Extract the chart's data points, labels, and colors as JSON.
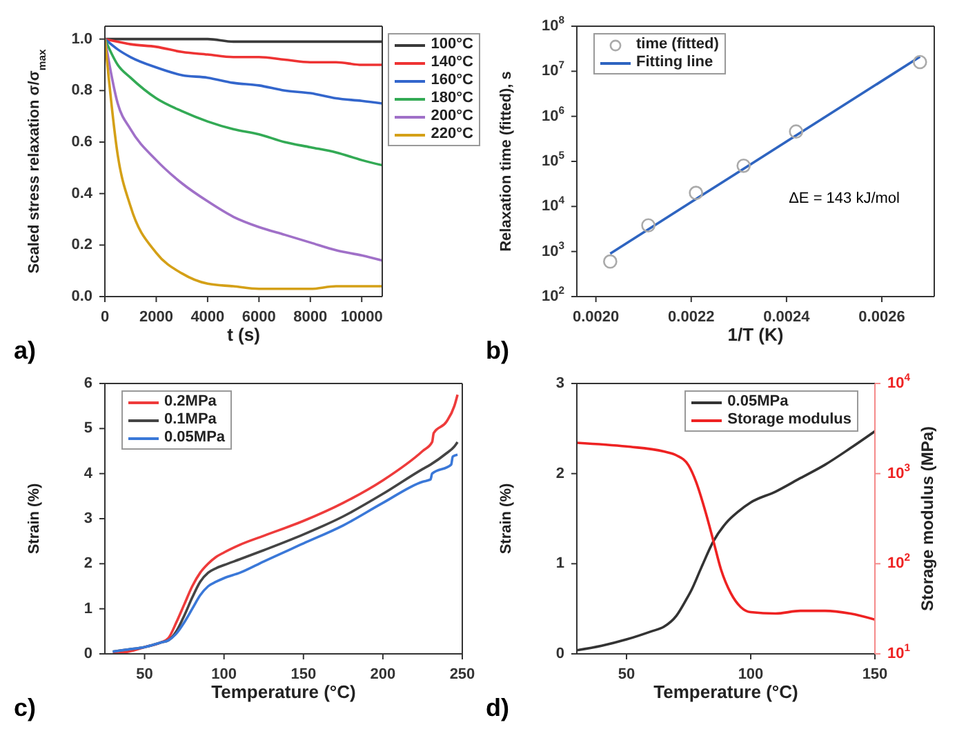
{
  "chart_data": [
    {
      "type": "line",
      "xlabel": "t (s)",
      "ylabel": "Scaled stress relaxation σ/σ$_{max}$",
      "annotations": [
        "a)"
      ],
      "legend": "top right",
      "xlim": [
        0,
        10800
      ],
      "xticks": [
        0,
        2000,
        4000,
        6000,
        8000,
        10000
      ],
      "ylim": [
        0,
        1.05
      ],
      "yticks": [
        {
          "value": 0,
          "label": "0.0"
        },
        0.2,
        0.4,
        0.6,
        0.8,
        {
          "value": 1,
          "label": "1.0"
        }
      ],
      "x": [
        0,
        500,
        1000,
        2000,
        3000,
        4000,
        5000,
        6000,
        7000,
        8000,
        9000,
        10000,
        10800
      ],
      "series": [
        {
          "name": "100°C",
          "color": "#3a3a3a",
          "values": [
            1,
            1,
            1,
            1,
            1,
            1,
            0.99,
            0.99,
            0.99,
            0.99,
            0.99,
            0.99,
            0.99
          ]
        },
        {
          "name": "140°C",
          "color": "#ee3333",
          "values": [
            1,
            0.99,
            0.98,
            0.97,
            0.95,
            0.94,
            0.93,
            0.93,
            0.92,
            0.91,
            0.91,
            0.9,
            0.9
          ]
        },
        {
          "name": "160°C",
          "color": "#3366cc",
          "values": [
            1,
            0.96,
            0.93,
            0.89,
            0.86,
            0.85,
            0.83,
            0.82,
            0.8,
            0.79,
            0.77,
            0.76,
            0.75
          ]
        },
        {
          "name": "180°C",
          "color": "#33aa55",
          "values": [
            1,
            0.9,
            0.85,
            0.77,
            0.72,
            0.68,
            0.65,
            0.63,
            0.6,
            0.58,
            0.56,
            0.53,
            0.51
          ]
        },
        {
          "name": "200°C",
          "color": "#a070c8",
          "values": [
            1,
            0.75,
            0.65,
            0.53,
            0.44,
            0.37,
            0.31,
            0.27,
            0.24,
            0.21,
            0.18,
            0.16,
            0.14
          ]
        },
        {
          "name": "220°C",
          "color": "#d4a017",
          "values": [
            1,
            0.55,
            0.35,
            0.17,
            0.09,
            0.05,
            0.04,
            0.03,
            0.03,
            0.03,
            0.04,
            0.04,
            0.04
          ]
        }
      ]
    },
    {
      "type": "line",
      "xlabel": "1/T (K)",
      "ylabel": "Relaxation time (fitted), s",
      "annotations": [
        "b)",
        "ΔE = 143 kJ/mol"
      ],
      "legend": "top left",
      "log": "y",
      "xlim": [
        0.00196,
        0.00271
      ],
      "xticks": [
        {
          "value": 0.002,
          "label": "0.0020"
        },
        {
          "value": 0.0022,
          "label": "0.0022"
        },
        {
          "value": 0.0024,
          "label": "0.0024"
        },
        {
          "value": 0.0026,
          "label": "0.0026"
        }
      ],
      "ylim": [
        100,
        100000000
      ],
      "yticks": [
        {
          "value": 100,
          "label": "10$^{2}$"
        },
        {
          "value": 1000,
          "label": "10$^{3}$"
        },
        {
          "value": 10000,
          "label": "10$^{4}$"
        },
        {
          "value": 100000,
          "label": "10$^{5}$"
        },
        {
          "value": 1000000,
          "label": "10$^{6}$"
        },
        {
          "value": 10000000,
          "label": "10$^{7}$"
        },
        {
          "value": 100000000,
          "label": "10$^{8}$"
        }
      ],
      "series": [
        {
          "name": "time (fitted)",
          "type": "scatter",
          "marker": "circle",
          "color": "#aaaaaa",
          "x": [
            0.00203,
            0.00211,
            0.00221,
            0.00231,
            0.00242,
            0.00268
          ],
          "values": [
            600,
            3800,
            20000,
            80000,
            460000,
            16000000
          ]
        },
        {
          "name": "Fitting line",
          "color": "#2e64c0",
          "x": [
            0.00203,
            0.00268
          ],
          "values": [
            900,
            21000000
          ]
        }
      ]
    },
    {
      "type": "line",
      "xlabel": "Temperature (°C)",
      "ylabel": "Strain (%)",
      "annotations": [
        "c)"
      ],
      "legend": "top left",
      "xlim": [
        25,
        250
      ],
      "xticks": [
        50,
        100,
        150,
        200,
        250
      ],
      "ylim": [
        0,
        6
      ],
      "yticks": [
        0,
        1,
        2,
        3,
        4,
        5,
        6
      ],
      "series": [
        {
          "name": "0.2MPa",
          "color": "#ee3b3b",
          "x": [
            30,
            40,
            50,
            60,
            65,
            70,
            75,
            80,
            85,
            90,
            95,
            100,
            110,
            125,
            150,
            175,
            200,
            225,
            231,
            232,
            240,
            245,
            247
          ],
          "values": [
            0,
            0.05,
            0.15,
            0.25,
            0.35,
            0.7,
            1.1,
            1.5,
            1.8,
            2,
            2.15,
            2.25,
            2.42,
            2.62,
            2.95,
            3.35,
            3.85,
            4.5,
            4.7,
            4.9,
            5.15,
            5.5,
            5.75
          ]
        },
        {
          "name": "0.1MPa",
          "color": "#444444",
          "x": [
            30,
            40,
            50,
            60,
            65,
            70,
            75,
            80,
            85,
            90,
            95,
            100,
            110,
            125,
            150,
            175,
            200,
            225,
            230,
            240,
            245,
            247
          ],
          "values": [
            0.05,
            0.1,
            0.15,
            0.25,
            0.3,
            0.5,
            0.85,
            1.25,
            1.6,
            1.8,
            1.9,
            1.97,
            2.1,
            2.3,
            2.65,
            3.05,
            3.55,
            4.1,
            4.2,
            4.45,
            4.6,
            4.7
          ]
        },
        {
          "name": "0.05MPa",
          "color": "#3a78d8",
          "x": [
            30,
            40,
            50,
            60,
            65,
            70,
            75,
            80,
            85,
            90,
            95,
            100,
            110,
            125,
            150,
            175,
            200,
            225,
            230,
            231,
            243,
            244,
            247
          ],
          "values": [
            0.05,
            0.1,
            0.15,
            0.25,
            0.3,
            0.45,
            0.7,
            1,
            1.3,
            1.5,
            1.6,
            1.68,
            1.8,
            2.05,
            2.45,
            2.85,
            3.35,
            3.82,
            3.87,
            4,
            4.2,
            4.38,
            4.42
          ]
        }
      ]
    },
    {
      "type": "line",
      "xlabel": "Temperature (°C)",
      "ylabel": "Strain (%)",
      "y2label": "Storage modulus (MPa)",
      "annotations": [
        "d)"
      ],
      "legend": "top right",
      "log": "y2",
      "xlim": [
        30,
        150
      ],
      "xticks": [
        50,
        100,
        150
      ],
      "ylim": [
        0,
        3
      ],
      "yticks": [
        0,
        1,
        2,
        3
      ],
      "y2lim": [
        10,
        10000
      ],
      "y2ticks": [
        {
          "value": 10,
          "label": "10$^{1}$"
        },
        {
          "value": 100,
          "label": "10$^{2}$"
        },
        {
          "value": 1000,
          "label": "10$^{3}$"
        },
        {
          "value": 10000,
          "label": "10$^{4}$"
        }
      ],
      "series": [
        {
          "name": "0.05MPa",
          "color": "#333333",
          "x": [
            30,
            40,
            50,
            60,
            65,
            70,
            74,
            76,
            80,
            85,
            90,
            95,
            100,
            110,
            120,
            130,
            140,
            150
          ],
          "values": [
            0.04,
            0.09,
            0.16,
            0.25,
            0.3,
            0.42,
            0.6,
            0.7,
            0.95,
            1.25,
            1.45,
            1.58,
            1.68,
            1.8,
            1.95,
            2.1,
            2.28,
            2.47
          ]
        },
        {
          "name": "Storage modulus",
          "axis": "y2",
          "color": "#ee2222",
          "x": [
            30,
            50,
            65,
            70,
            75,
            78,
            82,
            85,
            88,
            92,
            96,
            100,
            110,
            120,
            130,
            140,
            150
          ],
          "values": [
            2200,
            2000,
            1760,
            1600,
            1230,
            810,
            360,
            178,
            87,
            47,
            33,
            29,
            28,
            30,
            30,
            28,
            24
          ]
        }
      ]
    }
  ]
}
